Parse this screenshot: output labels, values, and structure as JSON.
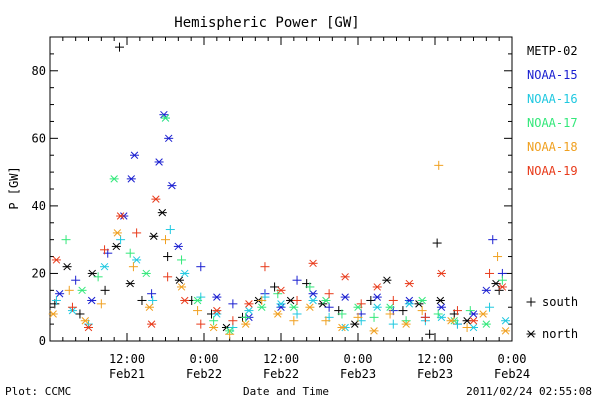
{
  "chart_data": {
    "type": "scatter",
    "title": "Hemispheric Power [GW]",
    "ylabel": "P [GW]",
    "xlabel": "Date and Time",
    "footer_left": "Plot: CCMC",
    "footer_right": "2011/02/24 02:55:08",
    "xlim": [
      "2011-02-21 00:00",
      "2011-02-24 00:00"
    ],
    "ylim": [
      0,
      90
    ],
    "yticks": [
      0,
      20,
      40,
      60,
      80
    ],
    "xticks": [
      {
        "time": "2011-02-21 12:00",
        "label": "12:00",
        "sublabel": "Feb21"
      },
      {
        "time": "2011-02-22 00:00",
        "label": "0:00",
        "sublabel": "Feb22"
      },
      {
        "time": "2011-02-22 12:00",
        "label": "12:00",
        "sublabel": "Feb22"
      },
      {
        "time": "2011-02-23 00:00",
        "label": "0:00",
        "sublabel": "Feb23"
      },
      {
        "time": "2011-02-23 12:00",
        "label": "12:00",
        "sublabel": "Feb23"
      },
      {
        "time": "2011-02-24 00:00",
        "label": "0:00",
        "sublabel": "Feb24"
      }
    ],
    "grid": false,
    "legend_position": "right",
    "marker_legend": [
      {
        "marker": "+",
        "label": "south"
      },
      {
        "marker": "*",
        "label": "north"
      }
    ],
    "series": [
      {
        "name": "METP-02",
        "color": "#000000",
        "points": [
          [
            "2011-02-21 00:45",
            11,
            "+"
          ],
          [
            "2011-02-21 02:40",
            22,
            "*"
          ],
          [
            "2011-02-21 04:40",
            8,
            "+"
          ],
          [
            "2011-02-21 06:35",
            20,
            "*"
          ],
          [
            "2011-02-21 08:35",
            15,
            "+"
          ],
          [
            "2011-02-21 10:20",
            28,
            "*"
          ],
          [
            "2011-02-21 10:50",
            87,
            "+"
          ],
          [
            "2011-02-21 12:30",
            17,
            "*"
          ],
          [
            "2011-02-21 14:20",
            12,
            "+"
          ],
          [
            "2011-02-21 16:10",
            31,
            "*"
          ],
          [
            "2011-02-21 17:30",
            38,
            "*"
          ],
          [
            "2011-02-21 18:20",
            25,
            "+"
          ],
          [
            "2011-02-21 20:10",
            18,
            "*"
          ],
          [
            "2011-02-21 22:05",
            12,
            "+"
          ],
          [
            "2011-02-22 01:10",
            8,
            "+"
          ],
          [
            "2011-02-22 03:30",
            4,
            "*"
          ],
          [
            "2011-02-22 06:00",
            7,
            "+"
          ],
          [
            "2011-02-22 08:30",
            12,
            "*"
          ],
          [
            "2011-02-22 11:00",
            16,
            "+"
          ],
          [
            "2011-02-22 13:30",
            12,
            "*"
          ],
          [
            "2011-02-22 16:00",
            17,
            "+"
          ],
          [
            "2011-02-22 18:30",
            11,
            "*"
          ],
          [
            "2011-02-22 21:00",
            9,
            "+"
          ],
          [
            "2011-02-22 23:30",
            5,
            "*"
          ],
          [
            "2011-02-23 02:00",
            12,
            "+"
          ],
          [
            "2011-02-23 04:30",
            18,
            "*"
          ],
          [
            "2011-02-23 07:00",
            9,
            "+"
          ],
          [
            "2011-02-23 09:30",
            11,
            "*"
          ],
          [
            "2011-02-23 11:10",
            2,
            "+"
          ],
          [
            "2011-02-23 12:20",
            29,
            "+"
          ],
          [
            "2011-02-23 12:50",
            12,
            "*"
          ],
          [
            "2011-02-23 15:00",
            8,
            "+"
          ],
          [
            "2011-02-23 17:00",
            6,
            "*"
          ],
          [
            "2011-02-23 21:30",
            17,
            "*"
          ],
          [
            "2011-02-23 22:00",
            15,
            "+"
          ]
        ]
      },
      {
        "name": "NOAA-15",
        "color": "#1a1fd0",
        "points": [
          [
            "2011-02-21 01:30",
            14,
            "*"
          ],
          [
            "2011-02-21 04:00",
            18,
            "+"
          ],
          [
            "2011-02-21 06:30",
            12,
            "*"
          ],
          [
            "2011-02-21 09:00",
            26,
            "+"
          ],
          [
            "2011-02-21 11:30",
            37,
            "*"
          ],
          [
            "2011-02-21 12:40",
            48,
            "*"
          ],
          [
            "2011-02-21 13:10",
            55,
            "*"
          ],
          [
            "2011-02-21 15:50",
            14,
            "+"
          ],
          [
            "2011-02-21 17:00",
            53,
            "*"
          ],
          [
            "2011-02-21 17:45",
            67,
            "*"
          ],
          [
            "2011-02-21 18:30",
            60,
            "*"
          ],
          [
            "2011-02-21 19:00",
            46,
            "*"
          ],
          [
            "2011-02-21 20:00",
            28,
            "*"
          ],
          [
            "2011-02-21 23:30",
            22,
            "+"
          ],
          [
            "2011-02-22 02:00",
            13,
            "*"
          ],
          [
            "2011-02-22 04:30",
            11,
            "+"
          ],
          [
            "2011-02-22 07:00",
            7,
            "*"
          ],
          [
            "2011-02-22 09:30",
            14,
            "+"
          ],
          [
            "2011-02-22 12:00",
            10,
            "*"
          ],
          [
            "2011-02-22 14:30",
            18,
            "+"
          ],
          [
            "2011-02-22 17:00",
            14,
            "*"
          ],
          [
            "2011-02-22 19:30",
            10,
            "+"
          ],
          [
            "2011-02-22 22:00",
            13,
            "*"
          ],
          [
            "2011-02-23 00:30",
            8,
            "+"
          ],
          [
            "2011-02-23 03:00",
            13,
            "*"
          ],
          [
            "2011-02-23 05:30",
            9,
            "+"
          ],
          [
            "2011-02-23 08:00",
            12,
            "*"
          ],
          [
            "2011-02-23 10:30",
            7,
            "+"
          ],
          [
            "2011-02-23 13:00",
            10,
            "*"
          ],
          [
            "2011-02-23 15:30",
            5,
            "+"
          ],
          [
            "2011-02-23 18:00",
            8,
            "*"
          ],
          [
            "2011-02-23 20:00",
            15,
            "*"
          ],
          [
            "2011-02-23 21:00",
            30,
            "+"
          ],
          [
            "2011-02-23 22:30",
            20,
            "+"
          ]
        ]
      },
      {
        "name": "NOAA-16",
        "color": "#1fc8e0",
        "points": [
          [
            "2011-02-21 01:00",
            12,
            "+"
          ],
          [
            "2011-02-21 03:30",
            9,
            "*"
          ],
          [
            "2011-02-21 06:00",
            5,
            "+"
          ],
          [
            "2011-02-21 08:30",
            22,
            "*"
          ],
          [
            "2011-02-21 11:00",
            30,
            "+"
          ],
          [
            "2011-02-21 13:30",
            24,
            "*"
          ],
          [
            "2011-02-21 16:00",
            12,
            "+"
          ],
          [
            "2011-02-21 18:00",
            66,
            "*"
          ],
          [
            "2011-02-21 18:45",
            33,
            "+"
          ],
          [
            "2011-02-21 21:00",
            20,
            "*"
          ],
          [
            "2011-02-21 23:30",
            13,
            "+"
          ],
          [
            "2011-02-22 02:00",
            8,
            "*"
          ],
          [
            "2011-02-22 04:30",
            4,
            "+"
          ],
          [
            "2011-02-22 07:00",
            9,
            "*"
          ],
          [
            "2011-02-22 09:30",
            13,
            "+"
          ],
          [
            "2011-02-22 12:00",
            11,
            "*"
          ],
          [
            "2011-02-22 14:30",
            8,
            "+"
          ],
          [
            "2011-02-22 17:00",
            12,
            "*"
          ],
          [
            "2011-02-22 19:30",
            7,
            "+"
          ],
          [
            "2011-02-22 22:00",
            4,
            "*"
          ],
          [
            "2011-02-23 00:30",
            6,
            "+"
          ],
          [
            "2011-02-23 03:00",
            10,
            "*"
          ],
          [
            "2011-02-23 05:30",
            5,
            "+"
          ],
          [
            "2011-02-23 08:00",
            11,
            "*"
          ],
          [
            "2011-02-23 10:30",
            6,
            "+"
          ],
          [
            "2011-02-23 13:00",
            7,
            "*"
          ],
          [
            "2011-02-23 15:30",
            5,
            "+"
          ],
          [
            "2011-02-23 18:00",
            4,
            "*"
          ],
          [
            "2011-02-23 20:30",
            10,
            "+"
          ],
          [
            "2011-02-23 23:00",
            6,
            "*"
          ]
        ]
      },
      {
        "name": "NOAA-17",
        "color": "#33e87a",
        "points": [
          [
            "2011-02-21 02:30",
            30,
            "+"
          ],
          [
            "2011-02-21 05:00",
            15,
            "*"
          ],
          [
            "2011-02-21 07:30",
            19,
            "+"
          ],
          [
            "2011-02-21 10:00",
            48,
            "*"
          ],
          [
            "2011-02-21 12:30",
            26,
            "+"
          ],
          [
            "2011-02-21 15:00",
            20,
            "*"
          ],
          [
            "2011-02-21 18:00",
            66,
            "*"
          ],
          [
            "2011-02-21 20:30",
            24,
            "+"
          ],
          [
            "2011-02-21 23:00",
            12,
            "*"
          ],
          [
            "2011-02-22 01:30",
            6,
            "+"
          ],
          [
            "2011-02-22 04:00",
            3,
            "*"
          ],
          [
            "2011-02-22 06:30",
            7,
            "+"
          ],
          [
            "2011-02-22 09:00",
            10,
            "*"
          ],
          [
            "2011-02-22 11:30",
            14,
            "+"
          ],
          [
            "2011-02-22 14:00",
            10,
            "*"
          ],
          [
            "2011-02-22 16:30",
            16,
            "+"
          ],
          [
            "2011-02-22 19:00",
            12,
            "*"
          ],
          [
            "2011-02-22 21:30",
            8,
            "+"
          ],
          [
            "2011-02-23 00:00",
            10,
            "*"
          ],
          [
            "2011-02-23 02:30",
            7,
            "+"
          ],
          [
            "2011-02-23 05:00",
            10,
            "*"
          ],
          [
            "2011-02-23 07:30",
            6,
            "+"
          ],
          [
            "2011-02-23 10:00",
            12,
            "*"
          ],
          [
            "2011-02-23 12:30",
            8,
            "+"
          ],
          [
            "2011-02-23 15:00",
            6,
            "*"
          ],
          [
            "2011-02-23 17:30",
            9,
            "+"
          ],
          [
            "2011-02-23 20:00",
            5,
            "*"
          ],
          [
            "2011-02-23 22:30",
            18,
            "+"
          ]
        ]
      },
      {
        "name": "NOAA-18",
        "color": "#f0a020",
        "points": [
          [
            "2011-02-21 00:30",
            8,
            "*"
          ],
          [
            "2011-02-21 03:00",
            15,
            "+"
          ],
          [
            "2011-02-21 05:30",
            6,
            "*"
          ],
          [
            "2011-02-21 08:00",
            11,
            "+"
          ],
          [
            "2011-02-21 10:30",
            32,
            "*"
          ],
          [
            "2011-02-21 13:00",
            22,
            "+"
          ],
          [
            "2011-02-21 15:30",
            10,
            "*"
          ],
          [
            "2011-02-21 18:00",
            30,
            "+"
          ],
          [
            "2011-02-21 20:30",
            16,
            "*"
          ],
          [
            "2011-02-21 23:00",
            9,
            "+"
          ],
          [
            "2011-02-22 01:30",
            4,
            "*"
          ],
          [
            "2011-02-22 04:00",
            2,
            "+"
          ],
          [
            "2011-02-22 06:30",
            5,
            "*"
          ],
          [
            "2011-02-22 09:00",
            12,
            "+"
          ],
          [
            "2011-02-22 11:30",
            8,
            "*"
          ],
          [
            "2011-02-22 14:00",
            6,
            "+"
          ],
          [
            "2011-02-22 16:30",
            10,
            "*"
          ],
          [
            "2011-02-22 19:00",
            6,
            "+"
          ],
          [
            "2011-02-22 21:30",
            4,
            "*"
          ],
          [
            "2011-02-23 00:00",
            7,
            "+"
          ],
          [
            "2011-02-23 02:30",
            3,
            "*"
          ],
          [
            "2011-02-23 05:00",
            8,
            "+"
          ],
          [
            "2011-02-23 07:30",
            5,
            "*"
          ],
          [
            "2011-02-23 10:00",
            9,
            "+"
          ],
          [
            "2011-02-23 12:35",
            52,
            "+"
          ],
          [
            "2011-02-23 14:30",
            6,
            "*"
          ],
          [
            "2011-02-23 17:00",
            4,
            "+"
          ],
          [
            "2011-02-23 19:30",
            8,
            "*"
          ],
          [
            "2011-02-23 21:45",
            25,
            "+"
          ],
          [
            "2011-02-23 23:00",
            3,
            "*"
          ]
        ]
      },
      {
        "name": "NOAA-19",
        "color": "#e83a1a",
        "points": [
          [
            "2011-02-21 01:00",
            24,
            "*"
          ],
          [
            "2011-02-21 03:30",
            10,
            "+"
          ],
          [
            "2011-02-21 06:00",
            4,
            "*"
          ],
          [
            "2011-02-21 08:30",
            27,
            "+"
          ],
          [
            "2011-02-21 11:00",
            37,
            "*"
          ],
          [
            "2011-02-21 13:30",
            32,
            "+"
          ],
          [
            "2011-02-21 15:50",
            5,
            "*"
          ],
          [
            "2011-02-21 16:30",
            42,
            "*"
          ],
          [
            "2011-02-21 18:20",
            19,
            "+"
          ],
          [
            "2011-02-21 21:00",
            12,
            "*"
          ],
          [
            "2011-02-21 23:30",
            5,
            "+"
          ],
          [
            "2011-02-22 02:00",
            9,
            "*"
          ],
          [
            "2011-02-22 04:30",
            6,
            "+"
          ],
          [
            "2011-02-22 07:00",
            11,
            "*"
          ],
          [
            "2011-02-22 09:30",
            22,
            "+"
          ],
          [
            "2011-02-22 12:00",
            15,
            "*"
          ],
          [
            "2011-02-22 14:30",
            12,
            "+"
          ],
          [
            "2011-02-22 17:00",
            23,
            "*"
          ],
          [
            "2011-02-22 19:30",
            14,
            "+"
          ],
          [
            "2011-02-22 22:00",
            19,
            "*"
          ],
          [
            "2011-02-23 00:30",
            11,
            "+"
          ],
          [
            "2011-02-23 03:00",
            16,
            "*"
          ],
          [
            "2011-02-23 05:30",
            12,
            "+"
          ],
          [
            "2011-02-23 08:00",
            17,
            "*"
          ],
          [
            "2011-02-23 10:30",
            7,
            "+"
          ],
          [
            "2011-02-23 13:00",
            20,
            "*"
          ],
          [
            "2011-02-23 15:30",
            9,
            "+"
          ],
          [
            "2011-02-23 18:00",
            6,
            "*"
          ],
          [
            "2011-02-23 20:30",
            20,
            "+"
          ],
          [
            "2011-02-23 22:30",
            16,
            "*"
          ]
        ]
      }
    ]
  }
}
